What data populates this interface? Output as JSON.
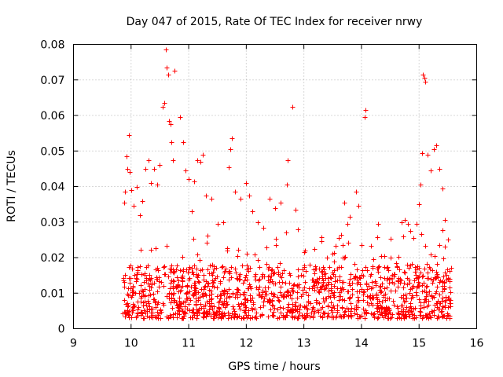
{
  "chart_data": {
    "type": "scatter",
    "title": "Day 047 of 2015, Rate Of TEC Index for receiver nrwy",
    "xlabel": "GPS time / hours",
    "ylabel": "ROTI / TECUs",
    "xlim": [
      9,
      16
    ],
    "ylim": [
      0,
      0.08
    ],
    "x_ticks": [
      "9",
      "10",
      "11",
      "12",
      "13",
      "14",
      "15",
      "16"
    ],
    "y_ticks": [
      "0",
      "0.01",
      "0.02",
      "0.03",
      "0.04",
      "0.05",
      "0.06",
      "0.07",
      "0.08"
    ],
    "grid": true,
    "marker": "+",
    "series": [
      {
        "name": "ROTI",
        "color": "#ff0000",
        "points": [
          [
            9.88,
            0.0355
          ],
          [
            9.9,
            0.0385
          ],
          [
            9.92,
            0.0485
          ],
          [
            9.94,
            0.045
          ],
          [
            9.96,
            0.0545
          ],
          [
            9.98,
            0.044
          ],
          [
            10.0,
            0.039
          ],
          [
            10.05,
            0.0345
          ],
          [
            10.1,
            0.04
          ],
          [
            10.15,
            0.032
          ],
          [
            10.2,
            0.036
          ],
          [
            10.25,
            0.045
          ],
          [
            10.3,
            0.0475
          ],
          [
            10.35,
            0.041
          ],
          [
            10.4,
            0.045
          ],
          [
            10.45,
            0.0405
          ],
          [
            10.5,
            0.046
          ],
          [
            10.55,
            0.0625
          ],
          [
            10.57,
            0.0635
          ],
          [
            10.6,
            0.0785
          ],
          [
            10.62,
            0.0735
          ],
          [
            10.64,
            0.0715
          ],
          [
            10.66,
            0.0585
          ],
          [
            10.68,
            0.0575
          ],
          [
            10.7,
            0.0525
          ],
          [
            10.72,
            0.0475
          ],
          [
            10.75,
            0.0725
          ],
          [
            10.85,
            0.0595
          ],
          [
            10.9,
            0.0525
          ],
          [
            10.95,
            0.0445
          ],
          [
            11.0,
            0.042
          ],
          [
            11.05,
            0.033
          ],
          [
            11.1,
            0.0415
          ],
          [
            11.15,
            0.0475
          ],
          [
            11.2,
            0.047
          ],
          [
            11.25,
            0.049
          ],
          [
            11.3,
            0.0375
          ],
          [
            11.4,
            0.0365
          ],
          [
            11.5,
            0.0295
          ],
          [
            11.6,
            0.03
          ],
          [
            11.7,
            0.0455
          ],
          [
            11.72,
            0.0505
          ],
          [
            11.75,
            0.0535
          ],
          [
            11.8,
            0.0385
          ],
          [
            11.9,
            0.0365
          ],
          [
            12.0,
            0.041
          ],
          [
            12.05,
            0.0375
          ],
          [
            12.1,
            0.033
          ],
          [
            12.2,
            0.03
          ],
          [
            12.3,
            0.0285
          ],
          [
            12.4,
            0.0365
          ],
          [
            12.5,
            0.034
          ],
          [
            12.6,
            0.0355
          ],
          [
            12.7,
            0.0405
          ],
          [
            12.72,
            0.0475
          ],
          [
            12.8,
            0.0625
          ],
          [
            12.85,
            0.0335
          ],
          [
            12.9,
            0.028
          ],
          [
            13.0,
            0.0215
          ],
          [
            13.1,
            0.018
          ],
          [
            13.2,
            0.0175
          ],
          [
            13.3,
            0.016
          ],
          [
            13.4,
            0.02
          ],
          [
            13.5,
            0.021
          ],
          [
            13.6,
            0.0255
          ],
          [
            13.65,
            0.0265
          ],
          [
            13.7,
            0.0355
          ],
          [
            13.75,
            0.0295
          ],
          [
            13.8,
            0.0315
          ],
          [
            13.9,
            0.0385
          ],
          [
            13.95,
            0.0345
          ],
          [
            14.0,
            0.0235
          ],
          [
            14.05,
            0.0595
          ],
          [
            14.07,
            0.0615
          ],
          [
            14.1,
            0.0165
          ],
          [
            14.2,
            0.0195
          ],
          [
            14.3,
            0.0175
          ],
          [
            14.4,
            0.0205
          ],
          [
            14.5,
            0.02
          ],
          [
            14.6,
            0.0185
          ],
          [
            14.7,
            0.03
          ],
          [
            14.75,
            0.0305
          ],
          [
            14.8,
            0.0295
          ],
          [
            14.85,
            0.0275
          ],
          [
            14.9,
            0.0255
          ],
          [
            14.95,
            0.0295
          ],
          [
            15.0,
            0.035
          ],
          [
            15.03,
            0.0405
          ],
          [
            15.05,
            0.0495
          ],
          [
            15.07,
            0.0715
          ],
          [
            15.09,
            0.0705
          ],
          [
            15.11,
            0.0695
          ],
          [
            15.15,
            0.049
          ],
          [
            15.2,
            0.0445
          ],
          [
            15.25,
            0.0505
          ],
          [
            15.3,
            0.0515
          ],
          [
            15.35,
            0.045
          ],
          [
            15.4,
            0.0395
          ],
          [
            15.45,
            0.0305
          ],
          [
            15.5,
            0.025
          ]
        ]
      }
    ],
    "dense_band": {
      "x_range": [
        9.85,
        15.55
      ],
      "y_range": [
        0.003,
        0.018
      ],
      "approx_points": 1400
    }
  }
}
